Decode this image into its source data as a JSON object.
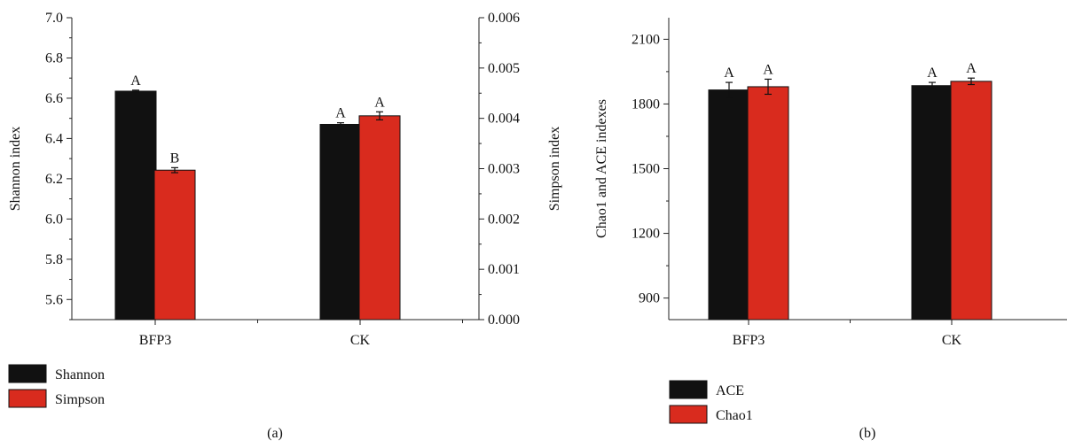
{
  "chart_data": [
    {
      "type": "bar",
      "panel_label": "(a)",
      "categories": [
        "BFP3",
        "CK"
      ],
      "left_axis": {
        "label": "Shannon index",
        "ylim": [
          5.5,
          7.0
        ],
        "ticks": [
          "5.6",
          "5.8",
          "6.0",
          "6.2",
          "6.4",
          "6.6",
          "6.8",
          "7.0"
        ]
      },
      "right_axis": {
        "label": "Simpson index",
        "ylim": [
          0.0,
          0.006
        ],
        "ticks": [
          "0.000",
          "0.001",
          "0.002",
          "0.003",
          "0.004",
          "0.005",
          "0.006"
        ]
      },
      "series": [
        {
          "name": "Shannon",
          "axis": "left",
          "color": "#111111",
          "values": [
            6.635,
            6.47
          ],
          "errors": [
            0.005,
            0.008
          ],
          "labels": [
            "A",
            "A"
          ]
        },
        {
          "name": "Simpson",
          "axis": "right",
          "color": "#d92b1e",
          "values": [
            0.00297,
            0.00405
          ],
          "errors": [
            5e-05,
            8e-05
          ],
          "labels": [
            "B",
            "A"
          ]
        }
      ],
      "legend_position": "bottom-left",
      "grid": false
    },
    {
      "type": "bar",
      "panel_label": "(b)",
      "categories": [
        "BFP3",
        "CK"
      ],
      "left_axis": {
        "label": "Chao1 and ACE indexes",
        "ylim": [
          800,
          2200
        ],
        "ticks": [
          "900",
          "1200",
          "1500",
          "1800",
          "2100"
        ]
      },
      "series": [
        {
          "name": "ACE",
          "axis": "left",
          "color": "#111111",
          "values": [
            1865,
            1885
          ],
          "errors": [
            35,
            15
          ],
          "labels": [
            "A",
            "A"
          ]
        },
        {
          "name": "Chao1",
          "axis": "left",
          "color": "#d92b1e",
          "values": [
            1880,
            1905
          ],
          "errors": [
            35,
            15
          ],
          "labels": [
            "A",
            "A"
          ]
        }
      ],
      "legend_position": "bottom-left",
      "grid": false
    }
  ]
}
